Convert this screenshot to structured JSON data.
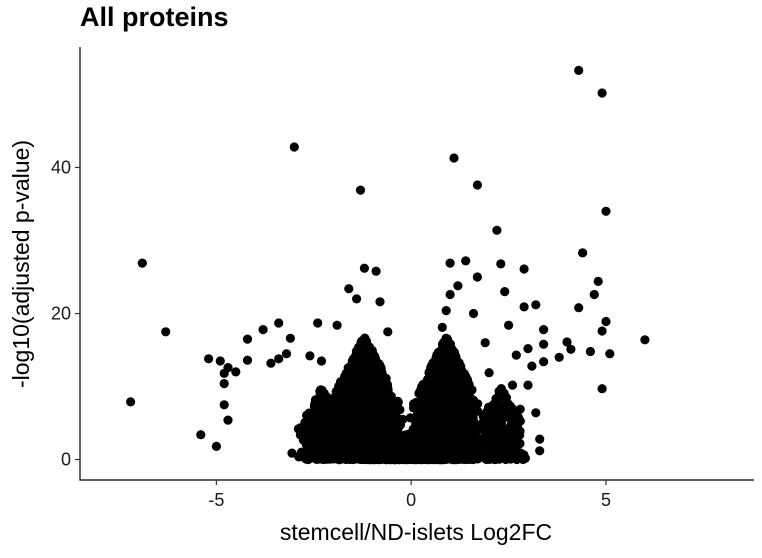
{
  "chart_data": {
    "type": "scatter",
    "title": "All proteins",
    "xlabel": "stemcell/ND-islets Log2FC",
    "ylabel": "-log10(adjusted p-value)",
    "xlim": [
      -8.5,
      8.8
    ],
    "ylim": [
      -2.8,
      56.5
    ],
    "x_ticks": [
      -5,
      0,
      5
    ],
    "y_ticks": [
      0,
      20,
      40
    ],
    "grid": false,
    "legend": "none",
    "marker_color": "#000000",
    "outliers": [
      [
        -7.2,
        7.9
      ],
      [
        -6.9,
        26.9
      ],
      [
        -6.3,
        17.5
      ],
      [
        -5.4,
        3.4
      ],
      [
        -5.2,
        13.8
      ],
      [
        -5.0,
        1.8
      ],
      [
        -4.9,
        13.5
      ],
      [
        -4.8,
        11.8
      ],
      [
        -4.8,
        10.4
      ],
      [
        -4.7,
        12.6
      ],
      [
        -4.8,
        7.5
      ],
      [
        -4.7,
        5.4
      ],
      [
        -4.5,
        12.0
      ],
      [
        -4.2,
        16.5
      ],
      [
        -4.2,
        13.6
      ],
      [
        -3.8,
        17.8
      ],
      [
        -3.6,
        13.2
      ],
      [
        -3.4,
        18.7
      ],
      [
        -3.4,
        13.8
      ],
      [
        -3.2,
        14.5
      ],
      [
        -3.1,
        16.6
      ],
      [
        -3.0,
        42.8
      ],
      [
        -2.6,
        14.2
      ],
      [
        -2.4,
        18.7
      ],
      [
        -2.3,
        13.5
      ],
      [
        -1.9,
        18.4
      ],
      [
        -1.6,
        23.4
      ],
      [
        -1.4,
        22.0
      ],
      [
        -1.3,
        36.9
      ],
      [
        -1.2,
        26.2
      ],
      [
        -0.9,
        25.8
      ],
      [
        -0.8,
        21.6
      ],
      [
        -0.6,
        17.5
      ],
      [
        0.8,
        18.1
      ],
      [
        0.9,
        20.4
      ],
      [
        1.0,
        22.6
      ],
      [
        1.0,
        26.9
      ],
      [
        1.1,
        41.3
      ],
      [
        1.2,
        23.8
      ],
      [
        1.4,
        27.2
      ],
      [
        1.6,
        20.0
      ],
      [
        1.7,
        37.6
      ],
      [
        1.7,
        25.0
      ],
      [
        1.7,
        0.1
      ],
      [
        1.9,
        16.0
      ],
      [
        2.0,
        11.9
      ],
      [
        2.2,
        31.4
      ],
      [
        2.3,
        26.8
      ],
      [
        2.4,
        23.0
      ],
      [
        2.5,
        18.4
      ],
      [
        2.5,
        3.2
      ],
      [
        2.6,
        10.2
      ],
      [
        2.7,
        14.3
      ],
      [
        2.8,
        6.9
      ],
      [
        2.9,
        26.1
      ],
      [
        2.9,
        20.9
      ],
      [
        3.0,
        15.2
      ],
      [
        3.0,
        10.2
      ],
      [
        3.1,
        12.8
      ],
      [
        3.2,
        21.2
      ],
      [
        3.2,
        6.4
      ],
      [
        3.3,
        2.8
      ],
      [
        3.3,
        1.2
      ],
      [
        3.4,
        15.8
      ],
      [
        3.4,
        13.4
      ],
      [
        3.4,
        17.8
      ],
      [
        3.8,
        14.0
      ],
      [
        4.0,
        16.1
      ],
      [
        4.1,
        15.1
      ],
      [
        4.3,
        53.3
      ],
      [
        4.3,
        20.8
      ],
      [
        4.4,
        28.3
      ],
      [
        4.6,
        14.8
      ],
      [
        4.7,
        22.6
      ],
      [
        4.8,
        24.4
      ],
      [
        4.9,
        50.2
      ],
      [
        4.9,
        9.7
      ],
      [
        4.9,
        17.6
      ],
      [
        5.0,
        34.0
      ],
      [
        5.0,
        18.9
      ],
      [
        5.1,
        14.5
      ],
      [
        6.0,
        16.4
      ]
    ],
    "clusters": [
      {
        "x_center": -1.2,
        "x_spread": 0.75,
        "y_max": 17.0,
        "count": 2200
      },
      {
        "x_center": 0.9,
        "x_spread": 0.7,
        "y_max": 17.0,
        "count": 2200
      },
      {
        "x_center": -0.1,
        "x_spread": 0.8,
        "y_max": 3.5,
        "count": 900
      },
      {
        "x_center": -2.3,
        "x_spread": 0.5,
        "y_max": 10.0,
        "count": 250
      },
      {
        "x_center": 2.3,
        "x_spread": 0.5,
        "y_max": 10.0,
        "count": 250
      }
    ]
  }
}
